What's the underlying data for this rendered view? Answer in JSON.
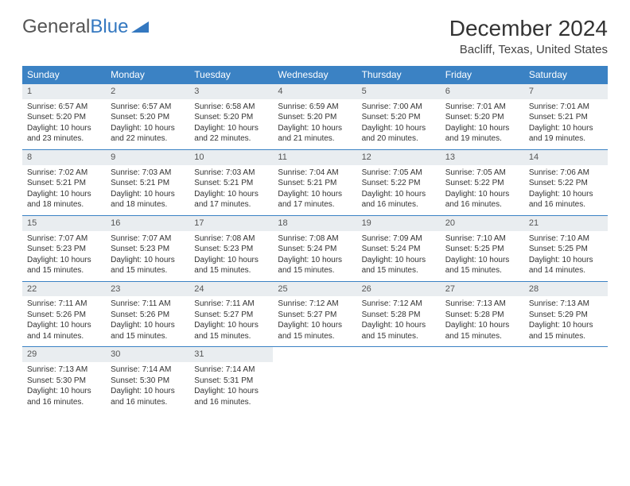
{
  "logo": {
    "text1": "General",
    "text2": "Blue"
  },
  "title": "December 2024",
  "location": "Bacliff, Texas, United States",
  "colors": {
    "header_bg": "#3b82c4",
    "header_text": "#ffffff",
    "daynum_bg": "#e9edf0",
    "border": "#3b82c4",
    "text": "#333333",
    "logo_gray": "#555555",
    "logo_blue": "#3478c0"
  },
  "weekdays": [
    "Sunday",
    "Monday",
    "Tuesday",
    "Wednesday",
    "Thursday",
    "Friday",
    "Saturday"
  ],
  "days": [
    {
      "n": "1",
      "sr": "Sunrise: 6:57 AM",
      "ss": "Sunset: 5:20 PM",
      "dl": "Daylight: 10 hours and 23 minutes."
    },
    {
      "n": "2",
      "sr": "Sunrise: 6:57 AM",
      "ss": "Sunset: 5:20 PM",
      "dl": "Daylight: 10 hours and 22 minutes."
    },
    {
      "n": "3",
      "sr": "Sunrise: 6:58 AM",
      "ss": "Sunset: 5:20 PM",
      "dl": "Daylight: 10 hours and 22 minutes."
    },
    {
      "n": "4",
      "sr": "Sunrise: 6:59 AM",
      "ss": "Sunset: 5:20 PM",
      "dl": "Daylight: 10 hours and 21 minutes."
    },
    {
      "n": "5",
      "sr": "Sunrise: 7:00 AM",
      "ss": "Sunset: 5:20 PM",
      "dl": "Daylight: 10 hours and 20 minutes."
    },
    {
      "n": "6",
      "sr": "Sunrise: 7:01 AM",
      "ss": "Sunset: 5:20 PM",
      "dl": "Daylight: 10 hours and 19 minutes."
    },
    {
      "n": "7",
      "sr": "Sunrise: 7:01 AM",
      "ss": "Sunset: 5:21 PM",
      "dl": "Daylight: 10 hours and 19 minutes."
    },
    {
      "n": "8",
      "sr": "Sunrise: 7:02 AM",
      "ss": "Sunset: 5:21 PM",
      "dl": "Daylight: 10 hours and 18 minutes."
    },
    {
      "n": "9",
      "sr": "Sunrise: 7:03 AM",
      "ss": "Sunset: 5:21 PM",
      "dl": "Daylight: 10 hours and 18 minutes."
    },
    {
      "n": "10",
      "sr": "Sunrise: 7:03 AM",
      "ss": "Sunset: 5:21 PM",
      "dl": "Daylight: 10 hours and 17 minutes."
    },
    {
      "n": "11",
      "sr": "Sunrise: 7:04 AM",
      "ss": "Sunset: 5:21 PM",
      "dl": "Daylight: 10 hours and 17 minutes."
    },
    {
      "n": "12",
      "sr": "Sunrise: 7:05 AM",
      "ss": "Sunset: 5:22 PM",
      "dl": "Daylight: 10 hours and 16 minutes."
    },
    {
      "n": "13",
      "sr": "Sunrise: 7:05 AM",
      "ss": "Sunset: 5:22 PM",
      "dl": "Daylight: 10 hours and 16 minutes."
    },
    {
      "n": "14",
      "sr": "Sunrise: 7:06 AM",
      "ss": "Sunset: 5:22 PM",
      "dl": "Daylight: 10 hours and 16 minutes."
    },
    {
      "n": "15",
      "sr": "Sunrise: 7:07 AM",
      "ss": "Sunset: 5:23 PM",
      "dl": "Daylight: 10 hours and 15 minutes."
    },
    {
      "n": "16",
      "sr": "Sunrise: 7:07 AM",
      "ss": "Sunset: 5:23 PM",
      "dl": "Daylight: 10 hours and 15 minutes."
    },
    {
      "n": "17",
      "sr": "Sunrise: 7:08 AM",
      "ss": "Sunset: 5:23 PM",
      "dl": "Daylight: 10 hours and 15 minutes."
    },
    {
      "n": "18",
      "sr": "Sunrise: 7:08 AM",
      "ss": "Sunset: 5:24 PM",
      "dl": "Daylight: 10 hours and 15 minutes."
    },
    {
      "n": "19",
      "sr": "Sunrise: 7:09 AM",
      "ss": "Sunset: 5:24 PM",
      "dl": "Daylight: 10 hours and 15 minutes."
    },
    {
      "n": "20",
      "sr": "Sunrise: 7:10 AM",
      "ss": "Sunset: 5:25 PM",
      "dl": "Daylight: 10 hours and 15 minutes."
    },
    {
      "n": "21",
      "sr": "Sunrise: 7:10 AM",
      "ss": "Sunset: 5:25 PM",
      "dl": "Daylight: 10 hours and 14 minutes."
    },
    {
      "n": "22",
      "sr": "Sunrise: 7:11 AM",
      "ss": "Sunset: 5:26 PM",
      "dl": "Daylight: 10 hours and 14 minutes."
    },
    {
      "n": "23",
      "sr": "Sunrise: 7:11 AM",
      "ss": "Sunset: 5:26 PM",
      "dl": "Daylight: 10 hours and 15 minutes."
    },
    {
      "n": "24",
      "sr": "Sunrise: 7:11 AM",
      "ss": "Sunset: 5:27 PM",
      "dl": "Daylight: 10 hours and 15 minutes."
    },
    {
      "n": "25",
      "sr": "Sunrise: 7:12 AM",
      "ss": "Sunset: 5:27 PM",
      "dl": "Daylight: 10 hours and 15 minutes."
    },
    {
      "n": "26",
      "sr": "Sunrise: 7:12 AM",
      "ss": "Sunset: 5:28 PM",
      "dl": "Daylight: 10 hours and 15 minutes."
    },
    {
      "n": "27",
      "sr": "Sunrise: 7:13 AM",
      "ss": "Sunset: 5:28 PM",
      "dl": "Daylight: 10 hours and 15 minutes."
    },
    {
      "n": "28",
      "sr": "Sunrise: 7:13 AM",
      "ss": "Sunset: 5:29 PM",
      "dl": "Daylight: 10 hours and 15 minutes."
    },
    {
      "n": "29",
      "sr": "Sunrise: 7:13 AM",
      "ss": "Sunset: 5:30 PM",
      "dl": "Daylight: 10 hours and 16 minutes."
    },
    {
      "n": "30",
      "sr": "Sunrise: 7:14 AM",
      "ss": "Sunset: 5:30 PM",
      "dl": "Daylight: 10 hours and 16 minutes."
    },
    {
      "n": "31",
      "sr": "Sunrise: 7:14 AM",
      "ss": "Sunset: 5:31 PM",
      "dl": "Daylight: 10 hours and 16 minutes."
    }
  ]
}
